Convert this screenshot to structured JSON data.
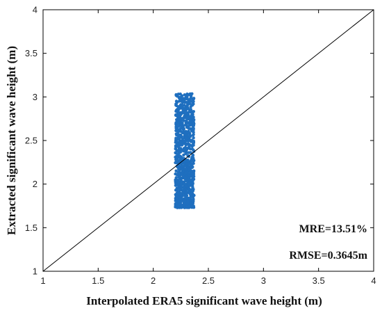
{
  "chart_data": {
    "type": "scatter",
    "title": "",
    "xlabel": "Interpolated ERA5 significant wave height (m)",
    "ylabel": "Extracted significant wave height (m)",
    "xlim": [
      1,
      4
    ],
    "ylim": [
      1,
      4
    ],
    "xticks": [
      "1",
      "1.5",
      "2",
      "2.5",
      "3",
      "3.5",
      "4"
    ],
    "yticks": [
      "1",
      "1.5",
      "2",
      "2.5",
      "3",
      "3.5",
      "4"
    ],
    "grid": false,
    "legend": "none",
    "reference_line": {
      "from": [
        1,
        1
      ],
      "to": [
        4,
        4
      ],
      "color": "#000000"
    },
    "marker_color": "#1f6fbf",
    "series": [
      {
        "x_range": [
          2.2,
          2.37
        ],
        "y_range": [
          1.73,
          3.04
        ],
        "approx_point_count": 900
      }
    ],
    "annotations": [
      "MRE=13.51%",
      "RMSE=0.3645m"
    ]
  }
}
